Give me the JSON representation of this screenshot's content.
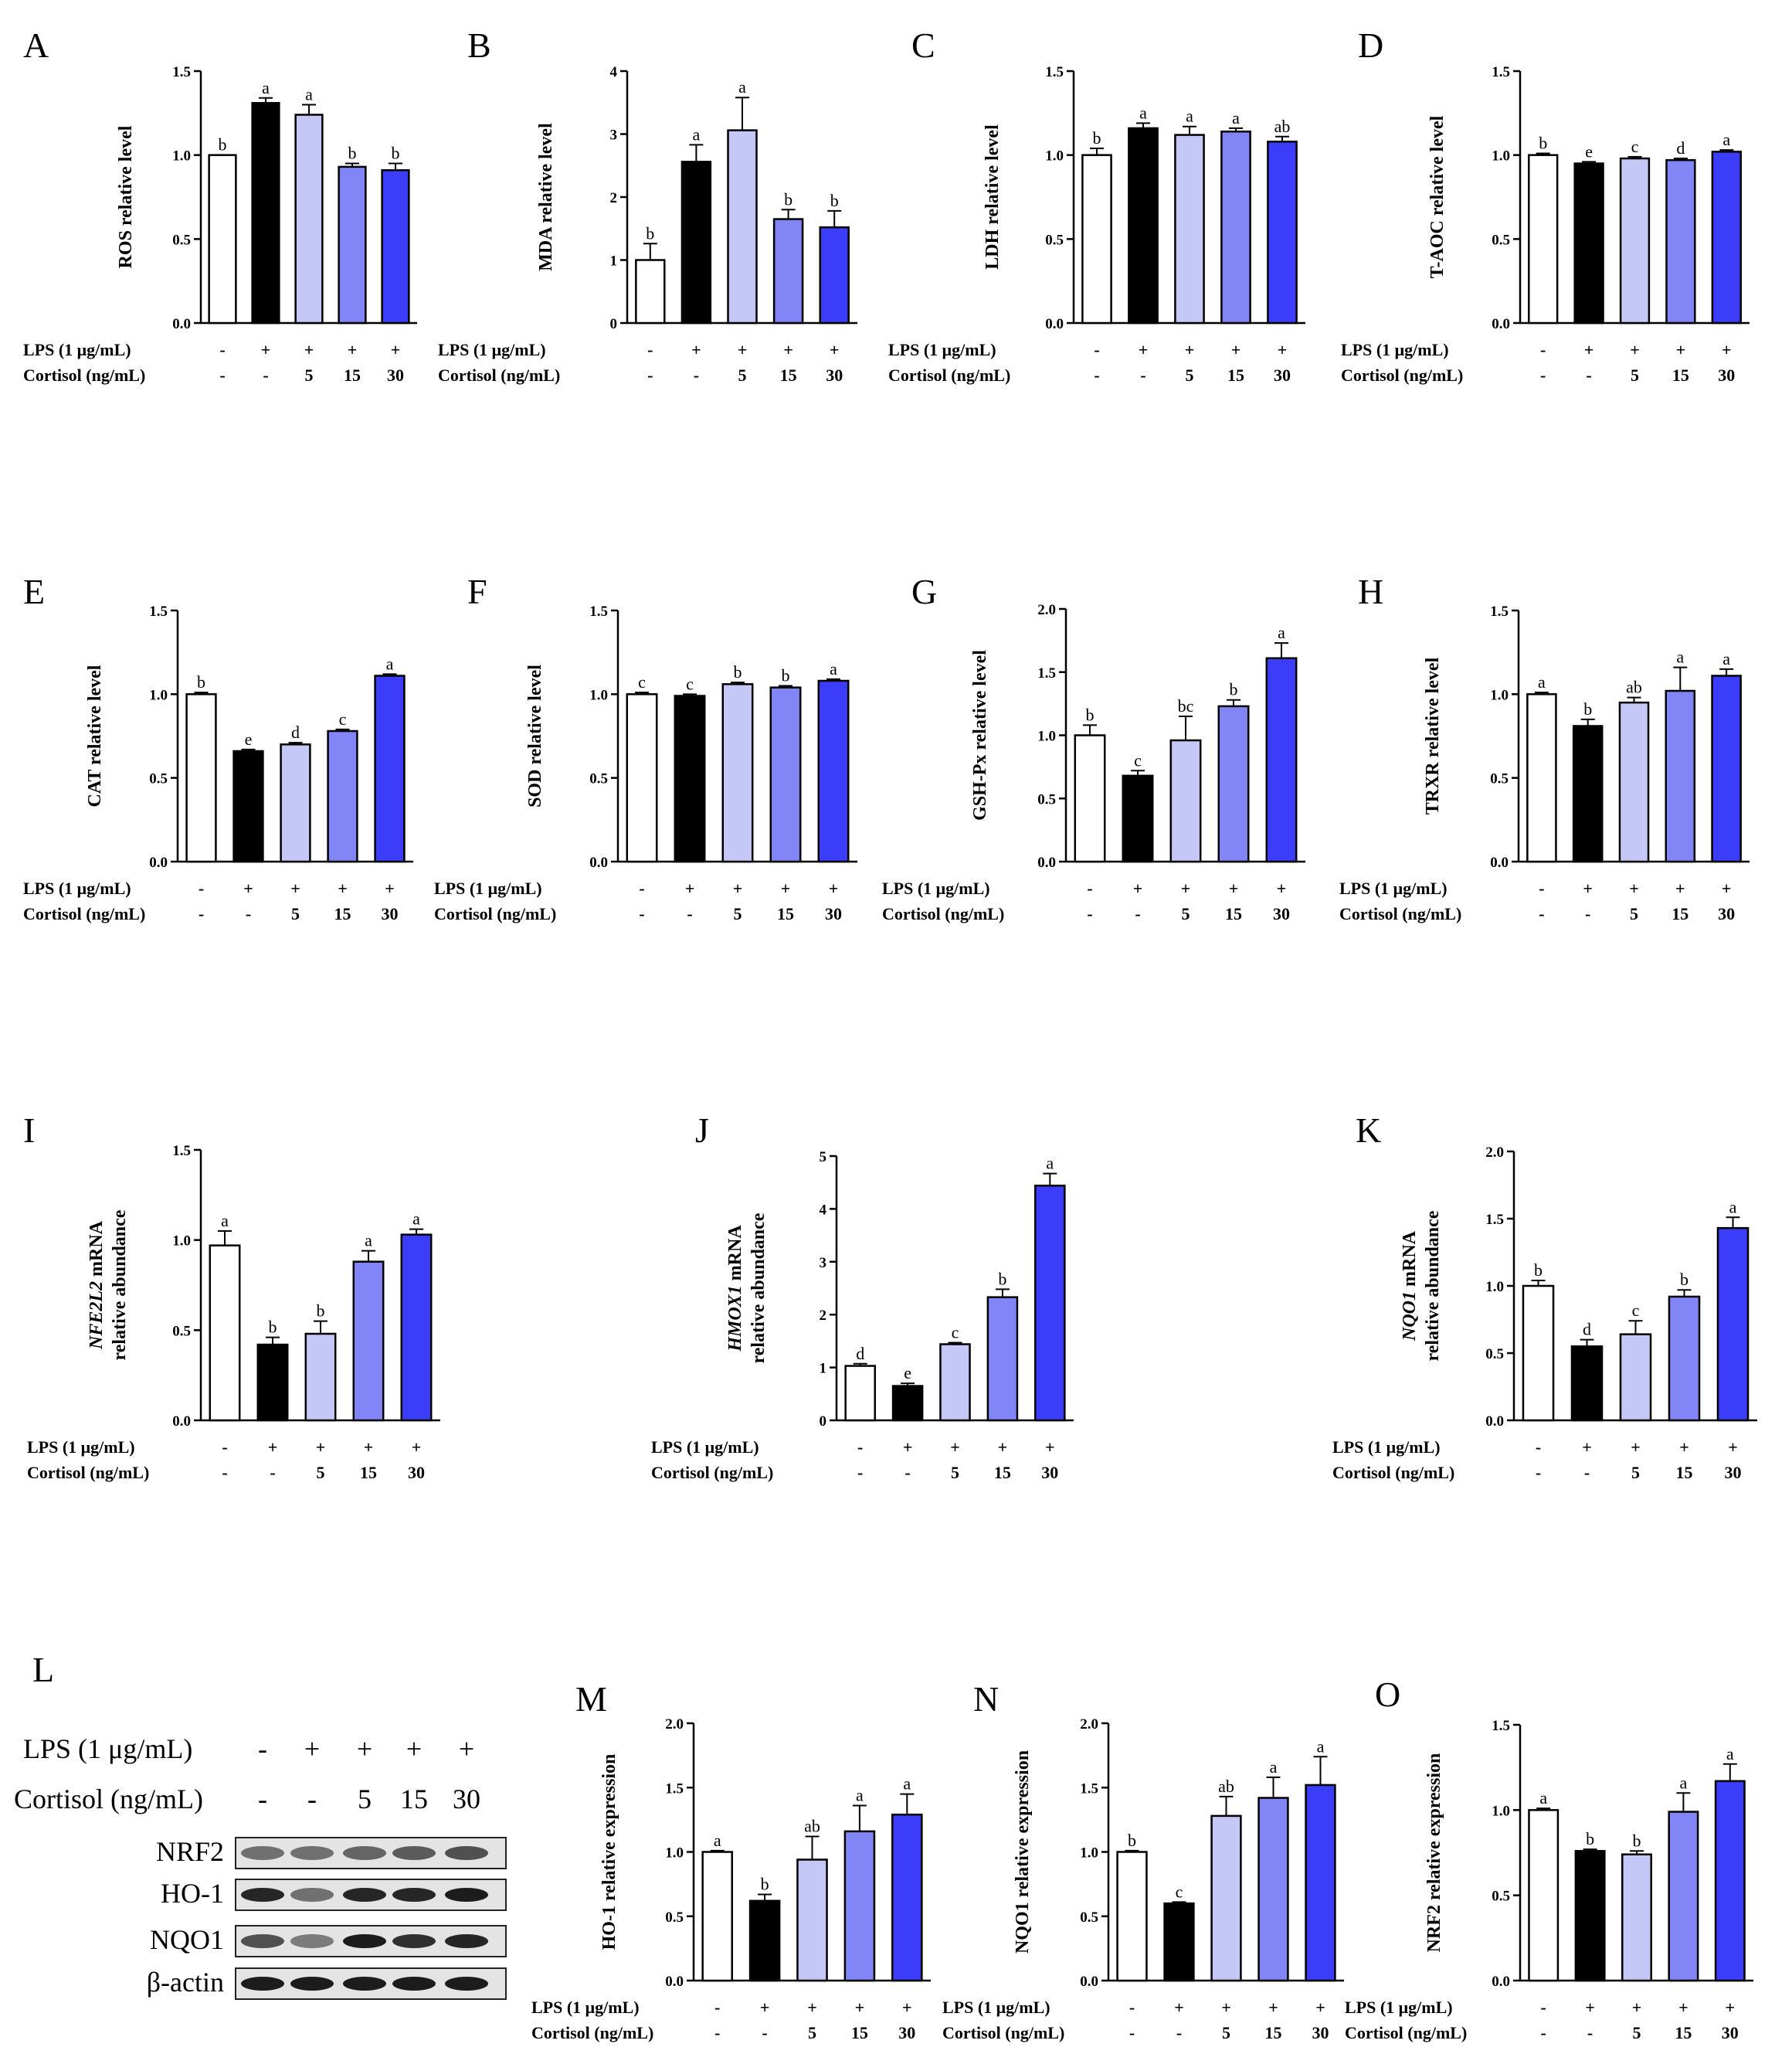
{
  "row_labels": {
    "lps": "LPS (1 μg/mL)",
    "cortisol": "Cortisol (ng/mL)",
    "lps_values": [
      "-",
      "+",
      "+",
      "+",
      "+"
    ],
    "cortisol_values": [
      "-",
      "-",
      "5",
      "15",
      "30"
    ]
  },
  "colors": [
    "#ffffff",
    "#000000",
    "#c5c8f7",
    "#8185f5",
    "#3c3df8"
  ],
  "chart_data": [
    {
      "panel": "A",
      "type": "bar",
      "ylabel": "ROS relative level",
      "ylim": [
        0,
        1.5
      ],
      "yticks": [
        "0.0",
        "0.5",
        "1.0",
        "1.5"
      ],
      "values": [
        1.0,
        1.31,
        1.24,
        0.93,
        0.91
      ],
      "errors": [
        0,
        0.03,
        0.06,
        0.02,
        0.04
      ],
      "letters": [
        "b",
        "a",
        "a",
        "b",
        "b"
      ]
    },
    {
      "panel": "B",
      "type": "bar",
      "ylabel": "MDA relative level",
      "ylim": [
        0,
        4
      ],
      "yticks": [
        "0",
        "1",
        "2",
        "3",
        "4"
      ],
      "values": [
        1.0,
        2.56,
        3.06,
        1.65,
        1.52
      ],
      "errors": [
        0.26,
        0.27,
        0.52,
        0.15,
        0.26
      ],
      "letters": [
        "b",
        "a",
        "a",
        "b",
        "b"
      ]
    },
    {
      "panel": "C",
      "type": "bar",
      "ylabel": "LDH relative level",
      "ylim": [
        0,
        1.5
      ],
      "yticks": [
        "0.0",
        "0.5",
        "1.0",
        "1.5"
      ],
      "values": [
        1.0,
        1.16,
        1.12,
        1.14,
        1.08
      ],
      "errors": [
        0.04,
        0.03,
        0.05,
        0.02,
        0.03
      ],
      "letters": [
        "b",
        "a",
        "a",
        "a",
        "ab"
      ]
    },
    {
      "panel": "D",
      "type": "bar",
      "ylabel": "T-AOC relative level",
      "ylim": [
        0,
        1.5
      ],
      "yticks": [
        "0.0",
        "0.5",
        "1.0",
        "1.5"
      ],
      "values": [
        1.0,
        0.95,
        0.98,
        0.97,
        1.02
      ],
      "errors": [
        0.01,
        0.01,
        0.01,
        0.01,
        0.01
      ],
      "letters": [
        "b",
        "e",
        "c",
        "d",
        "a"
      ]
    },
    {
      "panel": "E",
      "type": "bar",
      "ylabel": "CAT relative level",
      "ylim": [
        0,
        1.5
      ],
      "yticks": [
        "0.0",
        "0.5",
        "1.0",
        "1.5"
      ],
      "values": [
        1.0,
        0.66,
        0.7,
        0.78,
        1.11
      ],
      "errors": [
        0.01,
        0.01,
        0.01,
        0.01,
        0.01
      ],
      "letters": [
        "b",
        "e",
        "d",
        "c",
        "a"
      ]
    },
    {
      "panel": "F",
      "type": "bar",
      "ylabel": "SOD relative level",
      "ylim": [
        0,
        1.5
      ],
      "yticks": [
        "0.0",
        "0.5",
        "1.0",
        "1.5"
      ],
      "values": [
        1.0,
        0.99,
        1.06,
        1.04,
        1.08
      ],
      "errors": [
        0.01,
        0.01,
        0.01,
        0.01,
        0.01
      ],
      "letters": [
        "c",
        "c",
        "b",
        "b",
        "a"
      ]
    },
    {
      "panel": "G",
      "type": "bar",
      "ylabel": "GSH-Px relative level",
      "ylim": [
        0,
        2.0
      ],
      "yticks": [
        "0.0",
        "0.5",
        "1.0",
        "1.5",
        "2.0"
      ],
      "values": [
        1.0,
        0.68,
        0.96,
        1.23,
        1.61
      ],
      "errors": [
        0.08,
        0.04,
        0.19,
        0.05,
        0.12
      ],
      "letters": [
        "b",
        "c",
        "bc",
        "b",
        "a"
      ]
    },
    {
      "panel": "H",
      "type": "bar",
      "ylabel": "TRXR relative level",
      "ylim": [
        0,
        1.5
      ],
      "yticks": [
        "0.0",
        "0.5",
        "1.0",
        "1.5"
      ],
      "values": [
        1.0,
        0.81,
        0.95,
        1.02,
        1.11
      ],
      "errors": [
        0.01,
        0.04,
        0.03,
        0.14,
        0.04
      ],
      "letters": [
        "a",
        "b",
        "ab",
        "a",
        "a"
      ]
    },
    {
      "panel": "I",
      "type": "bar",
      "ylabel_italic": "NFE2L2",
      "ylabel": " mRNA",
      "ylabel2": "relative abundance",
      "ylim": [
        0,
        1.5
      ],
      "yticks": [
        "0.0",
        "0.5",
        "1.0",
        "1.5"
      ],
      "values": [
        0.97,
        0.42,
        0.48,
        0.88,
        1.03
      ],
      "errors": [
        0.08,
        0.04,
        0.07,
        0.06,
        0.03
      ],
      "letters": [
        "a",
        "b",
        "b",
        "a",
        "a"
      ]
    },
    {
      "panel": "J",
      "type": "bar",
      "ylabel_italic": "HMOX1",
      "ylabel": " mRNA",
      "ylabel2": "relative abundance",
      "ylim": [
        0,
        5
      ],
      "yticks": [
        "0",
        "1",
        "2",
        "3",
        "4",
        "5"
      ],
      "values": [
        1.03,
        0.65,
        1.44,
        2.33,
        4.44
      ],
      "errors": [
        0.04,
        0.05,
        0.03,
        0.15,
        0.23
      ],
      "letters": [
        "d",
        "e",
        "c",
        "b",
        "a"
      ]
    },
    {
      "panel": "K",
      "type": "bar",
      "ylabel_italic": "NQO1",
      "ylabel": " mRNA",
      "ylabel2": "relative abundance",
      "ylim": [
        0,
        2.0
      ],
      "yticks": [
        "0.0",
        "0.5",
        "1.0",
        "1.5",
        "2.0"
      ],
      "values": [
        1.0,
        0.55,
        0.64,
        0.92,
        1.43
      ],
      "errors": [
        0.04,
        0.05,
        0.1,
        0.05,
        0.08
      ],
      "letters": [
        "b",
        "d",
        "c",
        "b",
        "a"
      ]
    },
    {
      "panel": "M",
      "type": "bar",
      "ylabel": "HO-1 relative expression",
      "ylim": [
        0,
        2.0
      ],
      "yticks": [
        "0.0",
        "0.5",
        "1.0",
        "1.5",
        "2.0"
      ],
      "values": [
        1.0,
        0.62,
        0.94,
        1.16,
        1.29
      ],
      "errors": [
        0.01,
        0.05,
        0.18,
        0.2,
        0.16
      ],
      "letters": [
        "a",
        "b",
        "ab",
        "a",
        "a"
      ]
    },
    {
      "panel": "N",
      "type": "bar",
      "ylabel": "NQO1 relative expression",
      "ylim": [
        0,
        2.0
      ],
      "yticks": [
        "0.0",
        "0.5",
        "1.0",
        "1.5",
        "2.0"
      ],
      "values": [
        1.0,
        0.6,
        1.28,
        1.42,
        1.52
      ],
      "errors": [
        0.01,
        0.01,
        0.15,
        0.16,
        0.22
      ],
      "letters": [
        "b",
        "c",
        "ab",
        "a",
        "a"
      ]
    },
    {
      "panel": "O",
      "type": "bar",
      "ylabel": "NRF2 relative expression",
      "ylim": [
        0,
        1.5
      ],
      "yticks": [
        "0.0",
        "0.5",
        "1.0",
        "1.5"
      ],
      "values": [
        1.0,
        0.76,
        0.74,
        0.99,
        1.17
      ],
      "errors": [
        0.01,
        0.01,
        0.02,
        0.11,
        0.1
      ],
      "letters": [
        "a",
        "b",
        "b",
        "a",
        "a"
      ]
    }
  ],
  "western_blot": {
    "panel": "L",
    "lps_label": "LPS (1 μg/mL)",
    "cortisol_label": "Cortisol (ng/mL)",
    "lps_values": [
      "-",
      "+",
      "+",
      "+",
      "+"
    ],
    "cortisol_values": [
      "-",
      "-",
      "5",
      "15",
      "30"
    ],
    "bands": [
      "NRF2",
      "HO-1",
      "NQO1",
      "β-actin"
    ]
  }
}
